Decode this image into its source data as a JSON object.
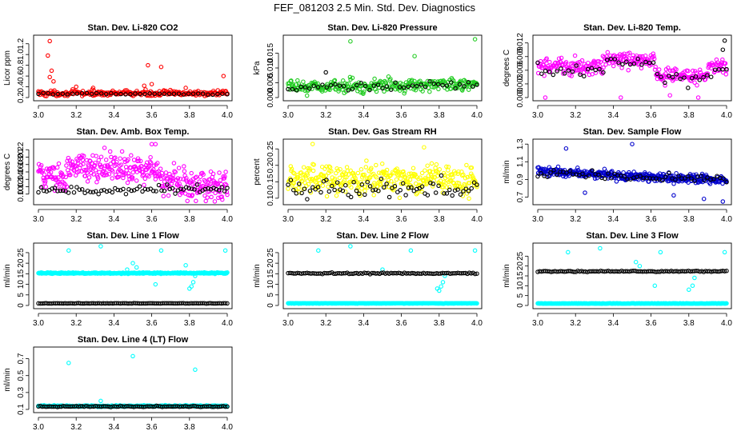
{
  "title": "FEF_081203  2.5 Min. Std. Dev. Diagnostics",
  "colors": {
    "red": "#ff0000",
    "green": "#22cc22",
    "magenta": "#ff00ff",
    "yellow": "#ffff00",
    "blue": "#0000cc",
    "cyan": "#00ffff",
    "black": "#000000"
  },
  "chart_data": [
    {
      "type": "scatter",
      "title": "Stan. Dev. Li-820 CO2",
      "ylabel": "Licor ppm",
      "xlim": [
        3.0,
        4.0
      ],
      "ylim": [
        0.2,
        1.3
      ],
      "xticks": [
        "3.0",
        "3.2",
        "3.4",
        "3.6",
        "3.8",
        "4.0"
      ],
      "yticks": [
        "0.2",
        "0.4",
        "0.6",
        "0.8",
        "1.0",
        "1.2"
      ],
      "series": [
        {
          "name": "red",
          "color": "red",
          "count": 260,
          "base": 0.28,
          "spread": 0.05,
          "trend": 0,
          "outliers": [
            [
              3.06,
              1.25
            ],
            [
              3.05,
              0.98
            ],
            [
              3.07,
              0.7
            ],
            [
              3.06,
              0.58
            ],
            [
              3.08,
              0.5
            ],
            [
              3.2,
              0.4
            ],
            [
              3.29,
              0.38
            ],
            [
              3.58,
              0.8
            ],
            [
              3.65,
              0.77
            ],
            [
              3.6,
              0.45
            ],
            [
              3.56,
              0.42
            ],
            [
              3.78,
              0.38
            ],
            [
              3.98,
              0.6
            ]
          ]
        },
        {
          "name": "black",
          "color": "black",
          "count": 40,
          "base": 0.27,
          "spread": 0.02,
          "trend": 0,
          "outliers": []
        }
      ]
    },
    {
      "type": "scatter",
      "title": "Stan. Dev. Li-820 Pressure",
      "ylabel": "kPa",
      "xlim": [
        3.0,
        4.0
      ],
      "ylim": [
        0.0,
        0.02
      ],
      "xticks": [
        "3.0",
        "3.2",
        "3.4",
        "3.6",
        "3.8",
        "4.0"
      ],
      "yticks": [
        "0.000",
        "0.005",
        "0.010",
        "0.015"
      ],
      "series": [
        {
          "name": "green",
          "color": "green",
          "count": 300,
          "base": 0.0035,
          "spread": 0.0022,
          "trend": 0.0012,
          "outliers": [
            [
              3.33,
              0.019
            ],
            [
              3.67,
              0.014
            ],
            [
              3.99,
              0.0197
            ]
          ]
        },
        {
          "name": "black",
          "color": "black",
          "count": 45,
          "base": 0.0033,
          "spread": 0.0015,
          "trend": 0.001,
          "outliers": [
            [
              3.2,
              0.0085
            ]
          ]
        }
      ]
    },
    {
      "type": "scatter",
      "title": "Stan. Dev. Li-820 Temp.",
      "ylabel": "degrees C",
      "xlim": [
        3.0,
        4.0
      ],
      "ylim": [
        0.0,
        0.013
      ],
      "xticks": [
        "3.0",
        "3.2",
        "3.4",
        "3.6",
        "3.8",
        "4.0"
      ],
      "yticks": [
        "0.000",
        "0.003",
        "0.006",
        "0.009",
        "0.012"
      ],
      "series": [
        {
          "name": "magenta",
          "color": "magenta",
          "count": 320,
          "base": 0.0068,
          "spread": 0.0018,
          "trend": 0,
          "bump": [
            3.35,
            3.62,
            0.0015
          ],
          "dip": [
            3.63,
            3.9,
            -0.002
          ],
          "outliers": [
            [
              3.04,
              0.0
            ],
            [
              3.85,
              0.0
            ],
            [
              3.44,
              0.0
            ],
            [
              3.7,
              0.0005
            ]
          ]
        },
        {
          "name": "black",
          "color": "black",
          "count": 50,
          "base": 0.006,
          "spread": 0.0015,
          "trend": 0,
          "bump": [
            3.35,
            3.62,
            0.0015
          ],
          "dip": [
            3.63,
            3.9,
            -0.002
          ],
          "outliers": [
            [
              3.99,
              0.0125
            ],
            [
              3.98,
              0.0105
            ]
          ]
        }
      ]
    },
    {
      "type": "scatter",
      "title": "Stan. Dev. Amb. Box Temp.",
      "ylabel": "degrees C",
      "xlim": [
        3.0,
        4.0
      ],
      "ylim": [
        0.08,
        0.24
      ],
      "xticks": [
        "3.0",
        "3.2",
        "3.4",
        "3.6",
        "3.8",
        "4.0"
      ],
      "yticks": [
        "0.10",
        "0.12",
        "0.14",
        "0.16",
        "0.18",
        "0.20",
        "0.22"
      ],
      "series": [
        {
          "name": "magenta",
          "color": "magenta",
          "count": 380,
          "base": 0.15,
          "spread": 0.04,
          "trend": -0.03,
          "bump": [
            3.15,
            3.65,
            0.03
          ],
          "outliers": [
            [
              3.6,
              0.235
            ],
            [
              3.62,
              0.235
            ],
            [
              3.35,
              0.225
            ]
          ]
        },
        {
          "name": "black",
          "color": "black",
          "count": 70,
          "base": 0.11,
          "spread": 0.01,
          "trend": 0.005,
          "outliers": []
        }
      ]
    },
    {
      "type": "scatter",
      "title": "Stan. Dev. Gas Stream RH",
      "ylabel": "percent",
      "xlim": [
        3.0,
        4.0
      ],
      "ylim": [
        0.09,
        0.27
      ],
      "xticks": [
        "3.0",
        "3.2",
        "3.4",
        "3.6",
        "3.8",
        "4.0"
      ],
      "yticks": [
        "0.10",
        "0.15",
        "0.20",
        "0.25"
      ],
      "series": [
        {
          "name": "yellow",
          "color": "yellow",
          "count": 360,
          "base": 0.16,
          "spread": 0.045,
          "trend": 0,
          "outliers": [
            [
              3.13,
              0.265
            ],
            [
              3.72,
              0.255
            ]
          ]
        },
        {
          "name": "black",
          "color": "black",
          "count": 70,
          "base": 0.13,
          "spread": 0.03,
          "trend": 0,
          "outliers": []
        }
      ]
    },
    {
      "type": "scatter",
      "title": "Stan. Dev. Sample Flow",
      "ylabel": "ml/min",
      "xlim": [
        3.0,
        4.0
      ],
      "ylim": [
        0.65,
        1.32
      ],
      "xticks": [
        "3.0",
        "3.2",
        "3.4",
        "3.6",
        "3.8",
        "4.0"
      ],
      "yticks": [
        "0.7",
        "0.9",
        "1.1",
        "1.3"
      ],
      "series": [
        {
          "name": "blue",
          "color": "blue",
          "count": 380,
          "base": 0.99,
          "spread": 0.05,
          "trend": -0.1,
          "outliers": [
            [
              3.5,
              1.3
            ],
            [
              3.98,
              0.65
            ],
            [
              3.88,
              0.68
            ],
            [
              3.15,
              1.25
            ],
            [
              3.25,
              0.75
            ],
            [
              3.72,
              0.72
            ]
          ]
        },
        {
          "name": "black",
          "color": "black",
          "count": 60,
          "base": 0.97,
          "spread": 0.05,
          "trend": -0.08,
          "outliers": []
        }
      ]
    },
    {
      "type": "scatter",
      "title": "Stan. Dev. Line 1 Flow",
      "ylabel": "ml/min",
      "xlim": [
        3.0,
        4.0
      ],
      "ylim": [
        0,
        28
      ],
      "xticks": [
        "3.0",
        "3.2",
        "3.4",
        "3.6",
        "3.8",
        "4.0"
      ],
      "yticks": [
        "0",
        "5",
        "10",
        "15",
        "20",
        "25"
      ],
      "series": [
        {
          "name": "cyan",
          "color": "cyan",
          "count": 340,
          "base": 15.3,
          "spread": 0.3,
          "trend": 0,
          "outliers": [
            [
              3.16,
              26
            ],
            [
              3.33,
              28
            ],
            [
              3.65,
              26
            ],
            [
              3.99,
              26
            ],
            [
              3.5,
              20
            ],
            [
              3.52,
              18
            ],
            [
              3.47,
              17
            ],
            [
              3.62,
              10
            ],
            [
              3.8,
              8
            ],
            [
              3.81,
              9
            ],
            [
              3.82,
              11
            ],
            [
              3.83,
              14
            ],
            [
              3.78,
              19
            ]
          ]
        },
        {
          "name": "black",
          "color": "black",
          "count": 100,
          "base": 1.0,
          "spread": 0.1,
          "trend": 0,
          "outliers": []
        }
      ]
    },
    {
      "type": "scatter",
      "title": "Stan. Dev. Line 2 Flow",
      "ylabel": "ml/min",
      "xlim": [
        3.0,
        4.0
      ],
      "ylim": [
        0,
        28
      ],
      "xticks": [
        "3.0",
        "3.2",
        "3.4",
        "3.6",
        "3.8",
        "4.0"
      ],
      "yticks": [
        "0",
        "5",
        "10",
        "15",
        "20",
        "25"
      ],
      "series": [
        {
          "name": "cyan",
          "color": "cyan",
          "count": 340,
          "base": 1.0,
          "spread": 0.1,
          "trend": 0,
          "outliers": [
            [
              3.16,
              26
            ],
            [
              3.33,
              28
            ],
            [
              3.65,
              26
            ],
            [
              3.99,
              26
            ],
            [
              3.5,
              17
            ],
            [
              3.8,
              7
            ],
            [
              3.81,
              9
            ],
            [
              3.82,
              11
            ],
            [
              3.79,
              8
            ],
            [
              3.83,
              14
            ]
          ]
        },
        {
          "name": "black",
          "color": "black",
          "count": 100,
          "base": 15.2,
          "spread": 0.3,
          "trend": 0,
          "outliers": []
        }
      ]
    },
    {
      "type": "scatter",
      "title": "Stan. Dev. Line 3 Flow",
      "ylabel": "ml/min",
      "xlim": [
        3.0,
        4.0
      ],
      "ylim": [
        0,
        30
      ],
      "xticks": [
        "3.0",
        "3.2",
        "3.4",
        "3.6",
        "3.8",
        "4.0"
      ],
      "yticks": [
        "0",
        "5",
        "10",
        "15",
        "20",
        "25"
      ],
      "series": [
        {
          "name": "cyan",
          "color": "cyan",
          "count": 340,
          "base": 1.0,
          "spread": 0.1,
          "trend": 0,
          "outliers": [
            [
              3.16,
              27
            ],
            [
              3.33,
              29
            ],
            [
              3.65,
              27
            ],
            [
              3.99,
              27
            ],
            [
              3.52,
              22
            ],
            [
              3.54,
              20
            ],
            [
              3.62,
              10
            ],
            [
              3.8,
              8
            ],
            [
              3.82,
              10
            ],
            [
              3.83,
              14
            ]
          ]
        },
        {
          "name": "black",
          "color": "black",
          "count": 100,
          "base": 17.3,
          "spread": 0.3,
          "trend": 0,
          "outliers": []
        }
      ]
    },
    {
      "type": "scatter",
      "title": "Stan. Dev. Line 4 (LT) Flow",
      "ylabel": "ml/min",
      "xlim": [
        3.0,
        4.0
      ],
      "ylim": [
        0.1,
        0.8
      ],
      "xticks": [
        "3.0",
        "3.2",
        "3.4",
        "3.6",
        "3.8",
        "4.0"
      ],
      "yticks": [
        "0.1",
        "0.3",
        "0.5",
        "0.7"
      ],
      "series": [
        {
          "name": "cyan",
          "color": "cyan",
          "count": 300,
          "base": 0.14,
          "spread": 0.008,
          "trend": 0,
          "outliers": [
            [
              3.16,
              0.65
            ],
            [
              3.5,
              0.73
            ],
            [
              3.83,
              0.57
            ],
            [
              3.33,
              0.2
            ]
          ]
        },
        {
          "name": "black",
          "color": "black",
          "count": 100,
          "base": 0.135,
          "spread": 0.006,
          "trend": 0,
          "outliers": []
        }
      ]
    }
  ]
}
